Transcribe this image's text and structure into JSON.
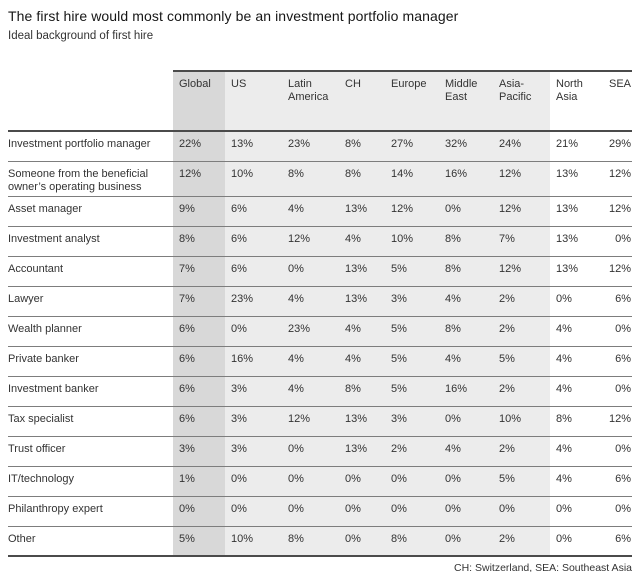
{
  "header": {
    "title": "The first hire would most commonly be an investment portfolio manager",
    "subtitle": "Ideal background of first hire"
  },
  "chart_data": {
    "type": "table",
    "title": "The first hire would most commonly be an investment portfolio manager",
    "subtitle": "Ideal background of first hire",
    "unit": "%",
    "columns": [
      "Global",
      "US",
      "Latin America",
      "CH",
      "Europe",
      "Middle East",
      "Asia-Pacific",
      "North Asia",
      "SEA"
    ],
    "rows": [
      {
        "label": "Investment portfolio manager",
        "values": [
          22,
          13,
          23,
          8,
          27,
          32,
          24,
          21,
          29
        ]
      },
      {
        "label": "Someone from the beneficial owner’s operating business",
        "values": [
          12,
          10,
          8,
          8,
          14,
          16,
          12,
          13,
          12
        ]
      },
      {
        "label": "Asset manager",
        "values": [
          9,
          6,
          4,
          13,
          12,
          0,
          12,
          13,
          12
        ]
      },
      {
        "label": "Investment analyst",
        "values": [
          8,
          6,
          12,
          4,
          10,
          8,
          7,
          13,
          0
        ]
      },
      {
        "label": "Accountant",
        "values": [
          7,
          6,
          0,
          13,
          5,
          8,
          12,
          13,
          12
        ]
      },
      {
        "label": "Lawyer",
        "values": [
          7,
          23,
          4,
          13,
          3,
          4,
          2,
          0,
          6
        ]
      },
      {
        "label": "Wealth planner",
        "values": [
          6,
          0,
          23,
          4,
          5,
          8,
          2,
          4,
          0
        ]
      },
      {
        "label": "Private banker",
        "values": [
          6,
          16,
          4,
          4,
          5,
          4,
          5,
          4,
          6
        ]
      },
      {
        "label": "Investment banker",
        "values": [
          6,
          3,
          4,
          8,
          5,
          16,
          2,
          4,
          0
        ]
      },
      {
        "label": "Tax specialist",
        "values": [
          6,
          3,
          12,
          13,
          3,
          0,
          10,
          8,
          12
        ]
      },
      {
        "label": "Trust officer",
        "values": [
          3,
          3,
          0,
          13,
          2,
          4,
          2,
          4,
          0
        ]
      },
      {
        "label": "IT/technology",
        "values": [
          1,
          0,
          0,
          0,
          0,
          0,
          5,
          4,
          6
        ]
      },
      {
        "label": "Philanthropy expert",
        "values": [
          0,
          0,
          0,
          0,
          0,
          0,
          0,
          0,
          0
        ]
      },
      {
        "label": "Other",
        "values": [
          5,
          10,
          8,
          0,
          8,
          0,
          2,
          0,
          6
        ]
      }
    ],
    "footnote": "CH: Switzerland, SEA: Southeast Asia",
    "layout": {
      "highlighted_column": "Global",
      "shaded_columns": [
        "US",
        "Latin America",
        "CH",
        "Europe",
        "Middle East",
        "Asia-Pacific"
      ]
    }
  },
  "colors": {
    "global_column_bg": "#d8d8d8",
    "regional_band_bg": "#ececec",
    "rule_dark": "#4b4b4b",
    "rule_light": "#7d7d7d",
    "text": "#333333",
    "title_text": "#161616"
  }
}
